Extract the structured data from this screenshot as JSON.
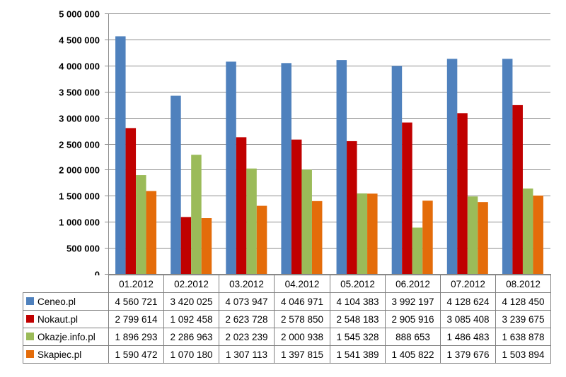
{
  "chart_data": {
    "type": "bar",
    "title": "",
    "xlabel": "",
    "ylabel": "",
    "ylim": [
      0,
      5000000
    ],
    "ytick_step": 500000,
    "ytick_labels": [
      "0",
      "500 000",
      "1 000 000",
      "1 500 000",
      "2 000 000",
      "2 500 000",
      "3 000 000",
      "3 500 000",
      "4 000 000",
      "4 500 000",
      "5 000 000"
    ],
    "grid": true,
    "legend": "data-table",
    "categories": [
      "01.2012",
      "02.2012",
      "03.2012",
      "04.2012",
      "05.2012",
      "06.2012",
      "07.2012",
      "08.2012"
    ],
    "series": [
      {
        "name": "Ceneo.pl",
        "color": "#4f81bd",
        "values": [
          4560721,
          3420025,
          4073947,
          4046971,
          4104383,
          3992197,
          4128624,
          4128450
        ],
        "labels": [
          "4 560 721",
          "3 420 025",
          "4 073 947",
          "4 046 971",
          "4 104 383",
          "3 992 197",
          "4 128 624",
          "4 128 450"
        ]
      },
      {
        "name": "Nokaut.pl",
        "color": "#c00000",
        "values": [
          2799614,
          1092458,
          2623728,
          2578850,
          2548183,
          2905916,
          3085408,
          3239675
        ],
        "labels": [
          "2 799 614",
          "1 092 458",
          "2 623 728",
          "2 578 850",
          "2 548 183",
          "2 905 916",
          "3 085 408",
          "3 239 675"
        ]
      },
      {
        "name": "Okazje.info.pl",
        "color": "#9bbb59",
        "values": [
          1896293,
          2286963,
          2023239,
          2000938,
          1545328,
          888653,
          1486483,
          1638878
        ],
        "labels": [
          "1 896 293",
          "2 286 963",
          "2 023 239",
          "2 000 938",
          "1 545 328",
          "888 653",
          "1 486 483",
          "1 638 878"
        ]
      },
      {
        "name": "Skapiec.pl",
        "color": "#e46c0a",
        "values": [
          1590472,
          1070180,
          1307113,
          1397815,
          1541389,
          1405822,
          1379676,
          1503894
        ],
        "labels": [
          "1 590 472",
          "1 070 180",
          "1 307 113",
          "1 397 815",
          "1 541 389",
          "1 405 822",
          "1 379 676",
          "1 503 894"
        ]
      }
    ]
  }
}
